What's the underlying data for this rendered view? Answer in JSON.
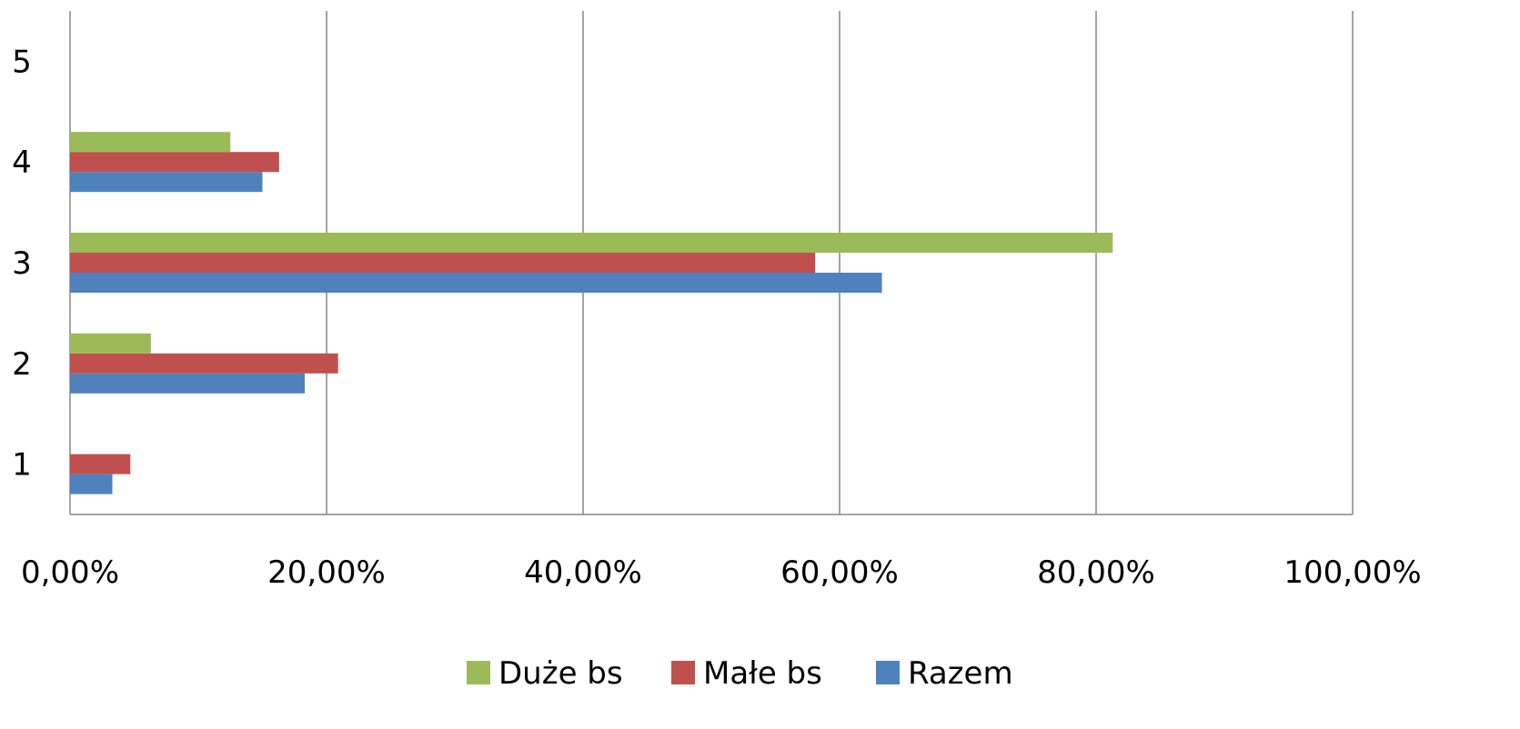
{
  "chart_data": {
    "type": "bar",
    "orientation": "horizontal",
    "title": "",
    "xlabel": "",
    "ylabel": "",
    "categories": [
      "1",
      "2",
      "3",
      "4",
      "5"
    ],
    "xlim": [
      0,
      100
    ],
    "x_ticks": [
      "0,00%",
      "20,00%",
      "40,00%",
      "60,00%",
      "80,00%",
      "100,00%"
    ],
    "grid": "vertical",
    "legend_position": "bottom",
    "series": [
      {
        "name": "Razem",
        "color": "#4F81BD",
        "values": [
          3.3,
          18.3,
          63.3,
          15.0,
          0
        ]
      },
      {
        "name": "Małe bs",
        "color": "#C0504D",
        "values": [
          4.7,
          20.9,
          58.1,
          16.3,
          0
        ]
      },
      {
        "name": "Duże bs",
        "color": "#9BBB59",
        "values": [
          0,
          6.3,
          81.3,
          12.5,
          0
        ]
      }
    ]
  }
}
